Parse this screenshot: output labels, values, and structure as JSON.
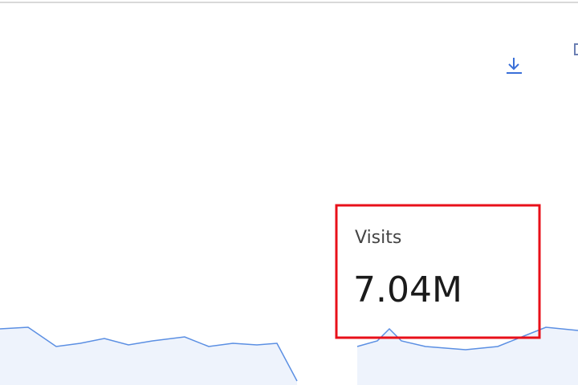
{
  "card": {
    "label": "Visits",
    "value": "7.04M"
  }
}
